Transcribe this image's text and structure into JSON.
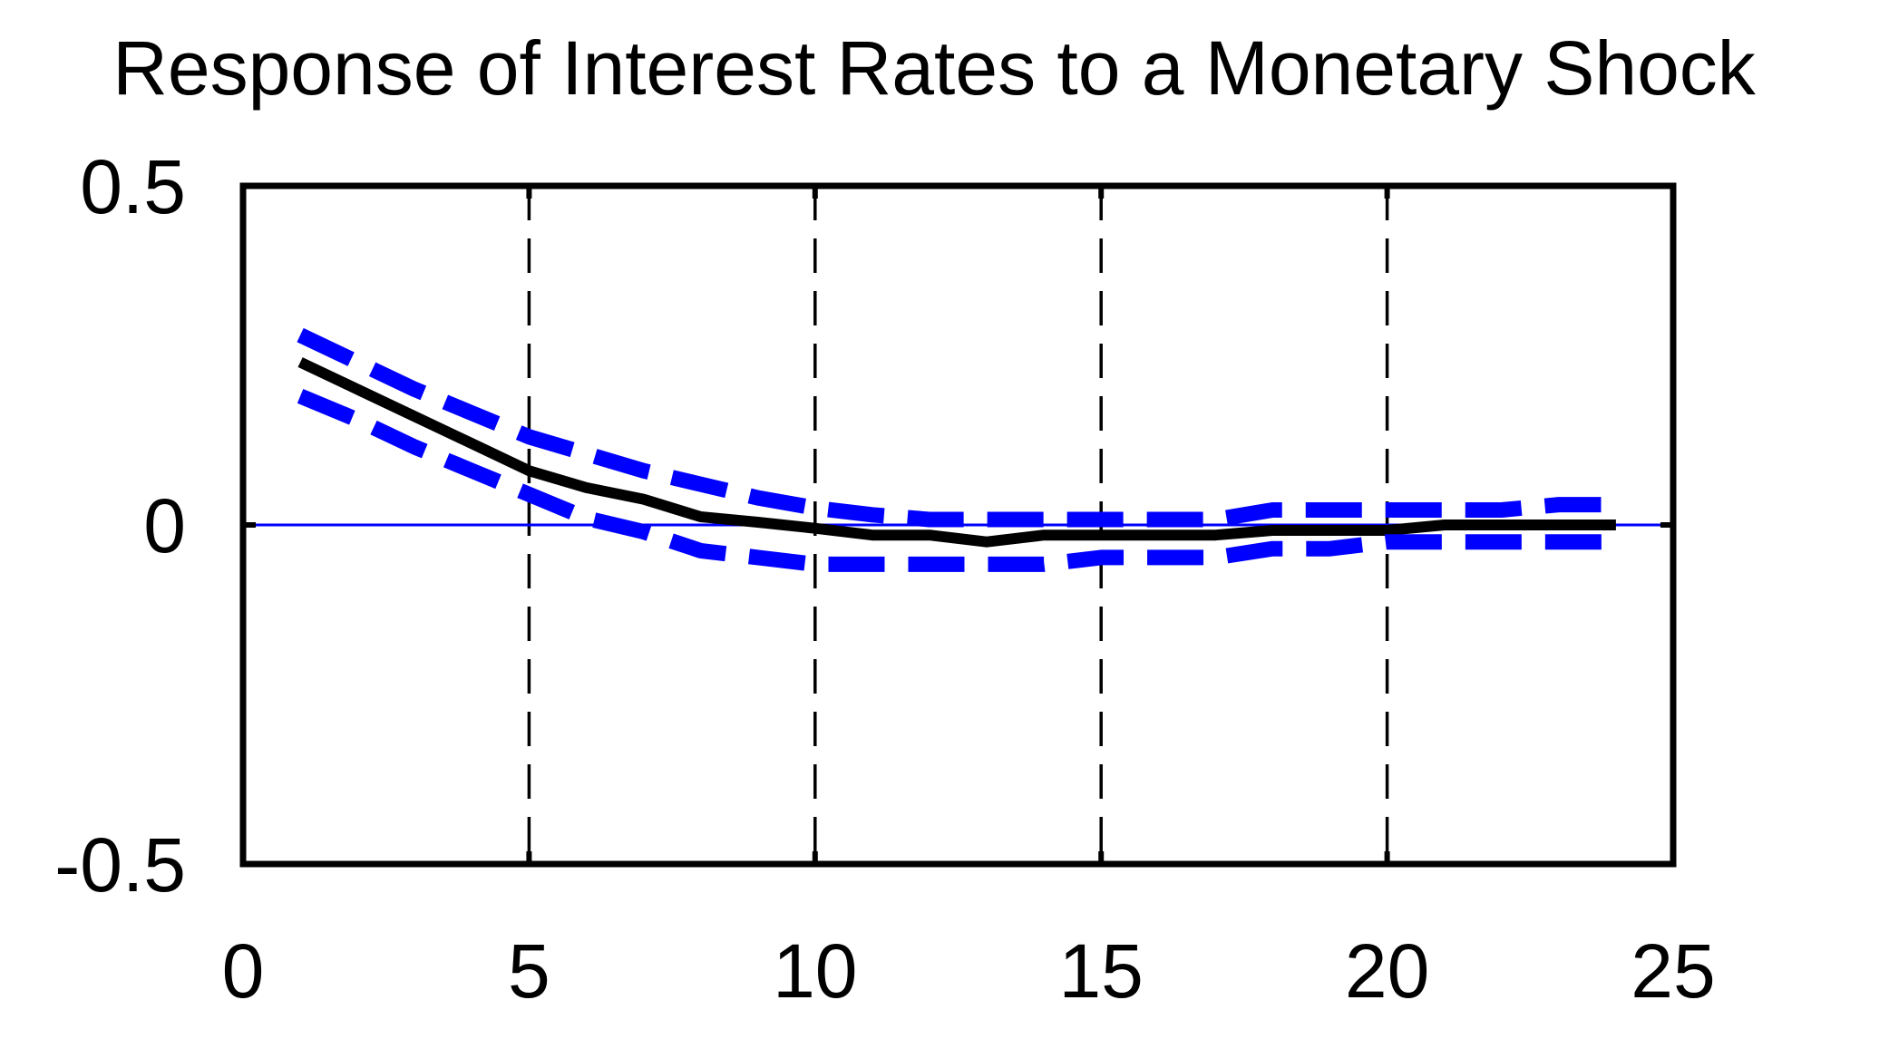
{
  "chart_data": {
    "type": "line",
    "title": "Response of Interest Rates to a Monetary Shock",
    "xlabel": "",
    "ylabel": "",
    "xlim": [
      0,
      25
    ],
    "ylim": [
      -0.5,
      0.5
    ],
    "x_ticks": [
      0,
      5,
      10,
      15,
      20,
      25
    ],
    "x_tick_labels": [
      "0",
      "5",
      "10",
      "15",
      "20",
      "25"
    ],
    "y_ticks": [
      0.5,
      0,
      -0.5
    ],
    "y_tick_labels": [
      "0.5",
      "0",
      "-0.5"
    ],
    "vertical_gridlines": [
      5,
      10,
      15,
      20
    ],
    "zero_line": true,
    "legend": "none",
    "colors": {
      "response": "#000000",
      "bands": "#0000ff",
      "zero_line": "#0000ff",
      "grid": "#000000"
    },
    "x": [
      1,
      2,
      3,
      4,
      5,
      6,
      7,
      8,
      9,
      10,
      11,
      12,
      13,
      14,
      15,
      16,
      17,
      18,
      19,
      20,
      21,
      22,
      23,
      24
    ],
    "series": [
      {
        "role": "response",
        "style": "solid",
        "values": [
          0.24,
          0.2,
          0.16,
          0.12,
          0.08,
          0.055,
          0.038,
          0.012,
          0.004,
          -0.005,
          -0.015,
          -0.015,
          -0.025,
          -0.015,
          -0.015,
          -0.015,
          -0.015,
          -0.008,
          -0.008,
          -0.008,
          0.0,
          0.0,
          0.0,
          0.0
        ]
      },
      {
        "role": "upper-band",
        "style": "dashed",
        "values": [
          0.28,
          0.24,
          0.2,
          0.165,
          0.13,
          0.105,
          0.08,
          0.06,
          0.04,
          0.025,
          0.015,
          0.008,
          0.008,
          0.008,
          0.008,
          0.008,
          0.008,
          0.022,
          0.022,
          0.022,
          0.022,
          0.022,
          0.03,
          0.03
        ]
      },
      {
        "role": "lower-band",
        "style": "dashed",
        "values": [
          0.19,
          0.155,
          0.115,
          0.08,
          0.045,
          0.01,
          -0.01,
          -0.038,
          -0.048,
          -0.058,
          -0.058,
          -0.058,
          -0.058,
          -0.058,
          -0.048,
          -0.048,
          -0.048,
          -0.035,
          -0.035,
          -0.025,
          -0.025,
          -0.025,
          -0.025,
          -0.025
        ]
      }
    ]
  }
}
